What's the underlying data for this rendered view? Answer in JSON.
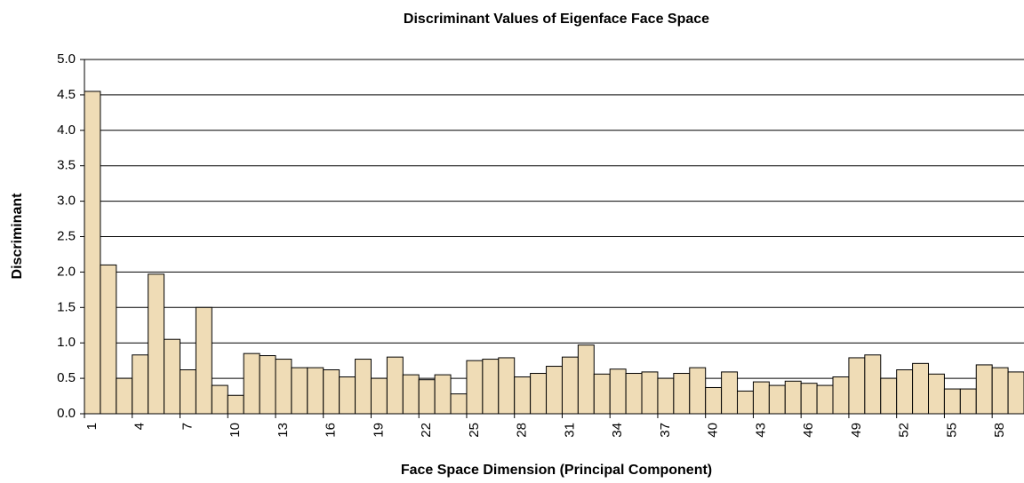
{
  "chart_data": {
    "type": "bar",
    "title": "Discriminant Values of Eigenface Face Space",
    "x_label": "Face Space Dimension (Principal Component)",
    "y_label": "Discriminant",
    "categories": [
      "1",
      null,
      null,
      "4",
      null,
      null,
      "7",
      null,
      null,
      "10",
      null,
      null,
      "13",
      null,
      null,
      "16",
      null,
      null,
      "19",
      null,
      null,
      "22",
      null,
      null,
      "25",
      null,
      null,
      "28",
      null,
      null,
      "31",
      null,
      null,
      "34",
      null,
      null,
      "37",
      null,
      null,
      "40",
      null,
      null,
      "43",
      null,
      null,
      "46",
      null,
      null,
      "49",
      null,
      null,
      "52",
      null,
      null,
      "55",
      null,
      null,
      "58",
      null
    ],
    "values": [
      4.55,
      2.1,
      0.5,
      0.83,
      1.97,
      1.05,
      0.62,
      1.5,
      0.4,
      0.26,
      0.85,
      0.82,
      0.77,
      0.65,
      0.65,
      0.62,
      0.52,
      0.77,
      0.5,
      0.8,
      0.55,
      0.48,
      0.55,
      0.28,
      0.75,
      0.77,
      0.79,
      0.52,
      0.57,
      0.67,
      0.8,
      0.97,
      0.56,
      0.63,
      0.57,
      0.59,
      0.5,
      0.57,
      0.65,
      0.37,
      0.59,
      0.32,
      0.45,
      0.4,
      0.46,
      0.43,
      0.4,
      0.52,
      0.79,
      0.83,
      0.5,
      0.62,
      0.71,
      0.56,
      0.35,
      0.35,
      0.69,
      0.65,
      0.59
    ],
    "color": "#efdcb6",
    "ylim": [
      0,
      5
    ],
    "yticks": [
      {
        "value": 0,
        "label": "0.0"
      },
      0.5,
      {
        "value": 1,
        "label": "1.0"
      },
      1.5,
      {
        "value": 2,
        "label": "2.0"
      },
      2.5,
      {
        "value": 3,
        "label": "3.0"
      },
      3.5,
      {
        "value": 4,
        "label": "4.0"
      },
      4.5,
      {
        "value": 5,
        "label": "5.0"
      }
    ],
    "grid": true
  }
}
